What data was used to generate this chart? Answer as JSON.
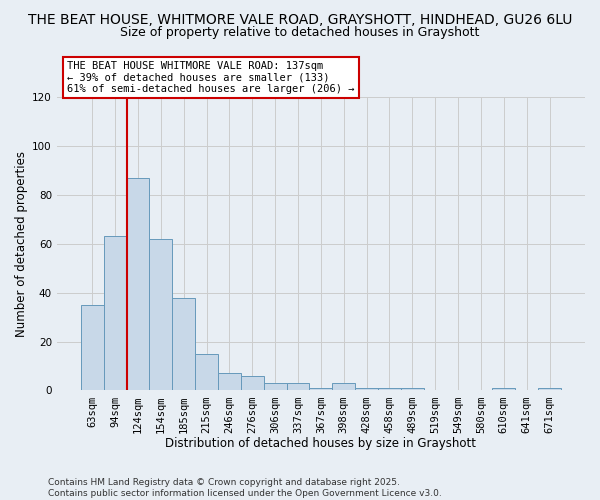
{
  "title_line1": "THE BEAT HOUSE, WHITMORE VALE ROAD, GRAYSHOTT, HINDHEAD, GU26 6LU",
  "title_line2": "Size of property relative to detached houses in Grayshott",
  "xlabel": "Distribution of detached houses by size in Grayshott",
  "ylabel": "Number of detached properties",
  "categories": [
    "63sqm",
    "94sqm",
    "124sqm",
    "154sqm",
    "185sqm",
    "215sqm",
    "246sqm",
    "276sqm",
    "306sqm",
    "337sqm",
    "367sqm",
    "398sqm",
    "428sqm",
    "458sqm",
    "489sqm",
    "519sqm",
    "549sqm",
    "580sqm",
    "610sqm",
    "641sqm",
    "671sqm"
  ],
  "values": [
    35,
    63,
    87,
    62,
    38,
    15,
    7,
    6,
    3,
    3,
    1,
    3,
    1,
    1,
    1,
    0,
    0,
    0,
    1,
    0,
    1
  ],
  "bar_color": "#c8d8e8",
  "bar_edge_color": "#6699bb",
  "grid_color": "#cccccc",
  "background_color": "#e8eef4",
  "annotation_text": "THE BEAT HOUSE WHITMORE VALE ROAD: 137sqm\n← 39% of detached houses are smaller (133)\n61% of semi-detached houses are larger (206) →",
  "annotation_box_color": "#ffffff",
  "annotation_box_edge": "#cc0000",
  "vline_color": "#cc0000",
  "ylim": [
    0,
    120
  ],
  "yticks": [
    0,
    20,
    40,
    60,
    80,
    100,
    120
  ],
  "footer_text": "Contains HM Land Registry data © Crown copyright and database right 2025.\nContains public sector information licensed under the Open Government Licence v3.0.",
  "title_fontsize": 10,
  "subtitle_fontsize": 9,
  "tick_fontsize": 7.5,
  "label_fontsize": 8.5,
  "annotation_fontsize": 7.5
}
